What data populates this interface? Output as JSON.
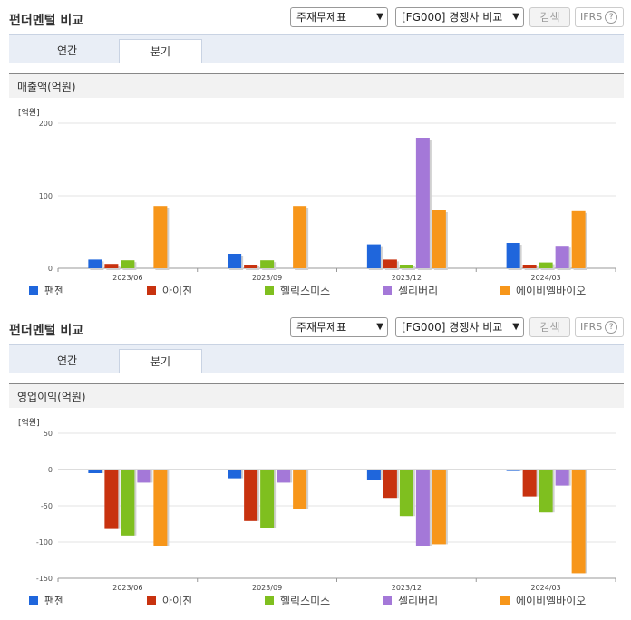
{
  "panels": [
    {
      "title": "펀더멘털 비교",
      "select1": "주재무제표",
      "select2": "[FG000] 경쟁사 비교",
      "search_label": "검색",
      "ifrs_label": "IFRS",
      "tabs": [
        {
          "label": "연간"
        },
        {
          "label": "분기"
        }
      ],
      "active_tab": "분기",
      "subhead": "매출액(억원)",
      "unit": "[억원]"
    },
    {
      "title": "펀더멘털 비교",
      "select1": "주재무제표",
      "select2": "[FG000] 경쟁사 비교",
      "search_label": "검색",
      "ifrs_label": "IFRS",
      "tabs": [
        {
          "label": "연간"
        },
        {
          "label": "분기"
        }
      ],
      "active_tab": "분기",
      "subhead": "영업이익(억원)",
      "unit": "[억원]"
    }
  ],
  "colors": {
    "팬젠": "#1f66dc",
    "아이진": "#c8320f",
    "헬릭스미스": "#7fbf1f",
    "셀리버리": "#a478d8",
    "에이비엘바이오": "#f7961a"
  },
  "chart_data": [
    {
      "type": "bar",
      "title": "매출액(억원)",
      "ylabel": "[억원]",
      "categories": [
        "2023/06",
        "2023/09",
        "2023/12",
        "2024/03"
      ],
      "ylim": [
        0,
        200
      ],
      "yticks": [
        0,
        100,
        200
      ],
      "series": [
        {
          "name": "팬젠",
          "values": [
            12,
            20,
            33,
            35
          ]
        },
        {
          "name": "아이진",
          "values": [
            6,
            5,
            12,
            5
          ]
        },
        {
          "name": "헬릭스미스",
          "values": [
            11,
            11,
            5,
            8
          ]
        },
        {
          "name": "셀리버리",
          "values": [
            0,
            0,
            180,
            31
          ]
        },
        {
          "name": "에이비엘바이오",
          "values": [
            86,
            86,
            80,
            79
          ]
        }
      ],
      "legend": "bottom"
    },
    {
      "type": "bar",
      "title": "영업이익(억원)",
      "ylabel": "[억원]",
      "categories": [
        "2023/06",
        "2023/09",
        "2023/12",
        "2024/03"
      ],
      "ylim": [
        -150,
        50
      ],
      "yticks": [
        -150,
        -100,
        -50,
        0,
        50
      ],
      "series": [
        {
          "name": "팬젠",
          "values": [
            -5,
            -12,
            -15,
            -2
          ]
        },
        {
          "name": "아이진",
          "values": [
            -82,
            -71,
            -39,
            -37
          ]
        },
        {
          "name": "헬릭스미스",
          "values": [
            -91,
            -80,
            -64,
            -59
          ]
        },
        {
          "name": "셀리버리",
          "values": [
            -18,
            -18,
            -105,
            -22
          ]
        },
        {
          "name": "에이비엘바이오",
          "values": [
            -105,
            -54,
            -103,
            -143
          ]
        }
      ],
      "legend": "bottom"
    }
  ]
}
